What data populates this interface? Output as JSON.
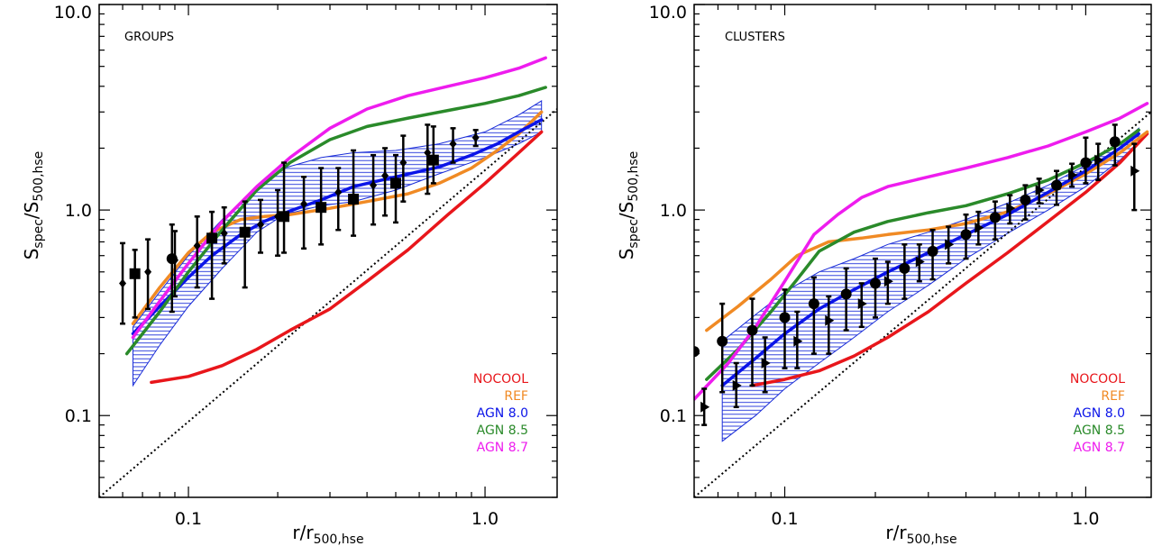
{
  "chart_data": [
    {
      "type": "line",
      "panel_label": "GROUPS",
      "xlabel_base": "r/r",
      "xlabel_sub": "500,hse",
      "ylabel_base": "S",
      "ylabel_sub1": "spec",
      "ylabel_mid": "/S",
      "ylabel_sub2": "500,hse",
      "xscale": "log",
      "yscale": "log",
      "xlim": [
        0.05,
        1.75
      ],
      "ylim": [
        0.04,
        10.0
      ],
      "xticks": [
        {
          "v": 0.1,
          "label": "0.1"
        },
        {
          "v": 1.0,
          "label": "1.0"
        }
      ],
      "yticks": [
        {
          "v": 0.1,
          "label": "0.1"
        },
        {
          "v": 1.0,
          "label": "1.0"
        },
        {
          "v": 10.0,
          "label": "10.0"
        }
      ],
      "legend": [
        {
          "label": "NOCOOL",
          "color": "#e8161b"
        },
        {
          "label": "REF",
          "color": "#f08a24"
        },
        {
          "label": "AGN 8.0",
          "color": "#0b14e8"
        },
        {
          "label": "AGN 8.5",
          "color": "#2a8a2a"
        },
        {
          "label": "AGN 8.7",
          "color": "#ee1cee"
        }
      ],
      "reference_line": {
        "x": [
          0.05,
          1.75
        ],
        "y": [
          0.04,
          3.1
        ]
      },
      "band": {
        "x": [
          0.065,
          0.08,
          0.1,
          0.13,
          0.17,
          0.21,
          0.28,
          0.36,
          0.5,
          0.7,
          1.0,
          1.3,
          1.55
        ],
        "upper": [
          0.27,
          0.4,
          0.6,
          0.9,
          1.3,
          1.6,
          1.8,
          1.9,
          1.95,
          2.1,
          2.4,
          2.9,
          3.4
        ],
        "lower": [
          0.14,
          0.22,
          0.34,
          0.52,
          0.78,
          0.95,
          1.05,
          1.1,
          1.25,
          1.5,
          1.8,
          2.1,
          2.4
        ]
      },
      "series": [
        {
          "name": "NOCOOL",
          "color": "#e8161b",
          "x": [
            0.075,
            0.1,
            0.13,
            0.17,
            0.22,
            0.3,
            0.4,
            0.55,
            0.75,
            1.0,
            1.3,
            1.55
          ],
          "y": [
            0.145,
            0.155,
            0.175,
            0.21,
            0.26,
            0.33,
            0.45,
            0.64,
            0.95,
            1.35,
            1.9,
            2.4
          ]
        },
        {
          "name": "REF",
          "color": "#f08a24",
          "x": [
            0.065,
            0.08,
            0.1,
            0.12,
            0.15,
            0.18,
            0.22,
            0.3,
            0.4,
            0.55,
            0.7,
            0.9,
            1.1,
            1.3,
            1.55
          ],
          "y": [
            0.28,
            0.42,
            0.62,
            0.78,
            0.9,
            0.93,
            0.95,
            1.02,
            1.1,
            1.2,
            1.35,
            1.6,
            1.95,
            2.35,
            3.0
          ]
        },
        {
          "name": "AGN 8.0",
          "color": "#0b14e8",
          "x": [
            0.065,
            0.08,
            0.1,
            0.12,
            0.15,
            0.18,
            0.22,
            0.28,
            0.36,
            0.5,
            0.7,
            0.9,
            1.1,
            1.3,
            1.55
          ],
          "y": [
            0.25,
            0.34,
            0.47,
            0.6,
            0.76,
            0.88,
            0.99,
            1.12,
            1.3,
            1.45,
            1.62,
            1.85,
            2.1,
            2.4,
            2.75
          ]
        },
        {
          "name": "AGN 8.5",
          "color": "#2a8a2a",
          "x": [
            0.062,
            0.08,
            0.1,
            0.13,
            0.17,
            0.22,
            0.3,
            0.4,
            0.55,
            0.75,
            1.0,
            1.3,
            1.6
          ],
          "y": [
            0.2,
            0.32,
            0.5,
            0.8,
            1.25,
            1.7,
            2.2,
            2.55,
            2.8,
            3.05,
            3.3,
            3.6,
            3.95
          ]
        },
        {
          "name": "AGN 8.7",
          "color": "#ee1cee",
          "x": [
            0.065,
            0.08,
            0.1,
            0.13,
            0.17,
            0.22,
            0.3,
            0.4,
            0.55,
            0.75,
            1.0,
            1.3,
            1.6
          ],
          "y": [
            0.24,
            0.36,
            0.55,
            0.88,
            1.3,
            1.8,
            2.5,
            3.1,
            3.6,
            4.0,
            4.4,
            4.9,
            5.5
          ]
        }
      ],
      "points": [
        {
          "x": 0.06,
          "y": 0.44,
          "lo": 0.28,
          "hi": 0.69,
          "marker": "diamond"
        },
        {
          "x": 0.066,
          "y": 0.49,
          "lo": 0.3,
          "hi": 0.64,
          "marker": "square"
        },
        {
          "x": 0.073,
          "y": 0.5,
          "lo": 0.33,
          "hi": 0.72,
          "marker": "diamond"
        },
        {
          "x": 0.088,
          "y": 0.58,
          "lo": 0.32,
          "hi": 0.85,
          "marker": "circle"
        },
        {
          "x": 0.09,
          "y": 0.57,
          "lo": 0.38,
          "hi": 0.79,
          "marker": "diamond"
        },
        {
          "x": 0.107,
          "y": 0.67,
          "lo": 0.42,
          "hi": 0.93,
          "marker": "diamond"
        },
        {
          "x": 0.12,
          "y": 0.73,
          "lo": 0.37,
          "hi": 0.98,
          "marker": "square"
        },
        {
          "x": 0.132,
          "y": 0.77,
          "lo": 0.55,
          "hi": 1.03,
          "marker": "diamond"
        },
        {
          "x": 0.155,
          "y": 0.78,
          "lo": 0.42,
          "hi": 1.1,
          "marker": "square"
        },
        {
          "x": 0.175,
          "y": 0.85,
          "lo": 0.62,
          "hi": 1.12,
          "marker": "diamond"
        },
        {
          "x": 0.2,
          "y": 0.93,
          "lo": 0.6,
          "hi": 1.25,
          "marker": "diamond"
        },
        {
          "x": 0.21,
          "y": 0.93,
          "lo": 0.62,
          "hi": 1.7,
          "marker": "square"
        },
        {
          "x": 0.245,
          "y": 1.07,
          "lo": 0.65,
          "hi": 1.45,
          "marker": "diamond"
        },
        {
          "x": 0.28,
          "y": 1.03,
          "lo": 0.68,
          "hi": 1.6,
          "marker": "square"
        },
        {
          "x": 0.32,
          "y": 1.22,
          "lo": 0.8,
          "hi": 1.6,
          "marker": "diamond"
        },
        {
          "x": 0.36,
          "y": 1.13,
          "lo": 0.75,
          "hi": 1.95,
          "marker": "square"
        },
        {
          "x": 0.42,
          "y": 1.32,
          "lo": 0.85,
          "hi": 1.85,
          "marker": "diamond"
        },
        {
          "x": 0.46,
          "y": 1.47,
          "lo": 0.94,
          "hi": 2.0,
          "marker": "diamond"
        },
        {
          "x": 0.5,
          "y": 1.35,
          "lo": 0.87,
          "hi": 1.85,
          "marker": "square"
        },
        {
          "x": 0.53,
          "y": 1.7,
          "lo": 1.1,
          "hi": 2.3,
          "marker": "diamond"
        },
        {
          "x": 0.64,
          "y": 1.9,
          "lo": 1.2,
          "hi": 2.6,
          "marker": "diamond"
        },
        {
          "x": 0.67,
          "y": 1.75,
          "lo": 1.35,
          "hi": 2.55,
          "marker": "square"
        },
        {
          "x": 0.78,
          "y": 2.1,
          "lo": 1.7,
          "hi": 2.5,
          "marker": "diamond"
        },
        {
          "x": 0.93,
          "y": 2.25,
          "lo": 2.05,
          "hi": 2.45,
          "marker": "diamond"
        }
      ]
    },
    {
      "type": "line",
      "panel_label": "CLUSTERS",
      "xlabel_base": "r/r",
      "xlabel_sub": "500,hse",
      "ylabel_base": "S",
      "ylabel_sub1": "spec",
      "ylabel_mid": "/S",
      "ylabel_sub2": "500,hse",
      "xscale": "log",
      "yscale": "log",
      "xlim": [
        0.05,
        1.65
      ],
      "ylim": [
        0.04,
        10.0
      ],
      "xticks": [
        {
          "v": 0.1,
          "label": "0.1"
        },
        {
          "v": 1.0,
          "label": "1.0"
        }
      ],
      "yticks": [
        {
          "v": 0.1,
          "label": "0.1"
        },
        {
          "v": 1.0,
          "label": "1.0"
        },
        {
          "v": 10.0,
          "label": "10.0"
        }
      ],
      "legend": [
        {
          "label": "NOCOOL",
          "color": "#e8161b"
        },
        {
          "label": "REF",
          "color": "#f08a24"
        },
        {
          "label": "AGN 8.0",
          "color": "#0b14e8"
        },
        {
          "label": "AGN 8.5",
          "color": "#2a8a2a"
        },
        {
          "label": "AGN 8.7",
          "color": "#ee1cee"
        }
      ],
      "reference_line": {
        "x": [
          0.05,
          1.65
        ],
        "y": [
          0.04,
          3.0
        ]
      },
      "band": {
        "x": [
          0.062,
          0.08,
          0.1,
          0.13,
          0.17,
          0.22,
          0.3,
          0.4,
          0.55,
          0.75,
          1.0,
          1.3,
          1.5
        ],
        "upper": [
          0.23,
          0.31,
          0.4,
          0.5,
          0.58,
          0.68,
          0.78,
          0.9,
          1.08,
          1.32,
          1.65,
          2.1,
          2.5
        ],
        "lower": [
          0.075,
          0.1,
          0.135,
          0.18,
          0.24,
          0.32,
          0.43,
          0.58,
          0.77,
          1.0,
          1.3,
          1.75,
          2.15
        ]
      },
      "series": [
        {
          "name": "NOCOOL",
          "color": "#e8161b",
          "x": [
            0.078,
            0.1,
            0.13,
            0.17,
            0.22,
            0.3,
            0.4,
            0.55,
            0.75,
            1.0,
            1.3,
            1.6
          ],
          "y": [
            0.14,
            0.15,
            0.165,
            0.195,
            0.24,
            0.32,
            0.44,
            0.62,
            0.88,
            1.22,
            1.7,
            2.35
          ]
        },
        {
          "name": "REF",
          "color": "#f08a24",
          "x": [
            0.055,
            0.07,
            0.09,
            0.11,
            0.14,
            0.18,
            0.22,
            0.3,
            0.4,
            0.55,
            0.75,
            1.0,
            1.3,
            1.6
          ],
          "y": [
            0.26,
            0.34,
            0.46,
            0.6,
            0.7,
            0.73,
            0.76,
            0.8,
            0.86,
            0.98,
            1.2,
            1.5,
            1.9,
            2.4
          ]
        },
        {
          "name": "AGN 8.0",
          "color": "#0b14e8",
          "x": [
            0.062,
            0.08,
            0.1,
            0.13,
            0.17,
            0.22,
            0.3,
            0.4,
            0.55,
            0.75,
            1.0,
            1.3,
            1.5
          ],
          "y": [
            0.14,
            0.19,
            0.25,
            0.33,
            0.41,
            0.5,
            0.62,
            0.76,
            0.95,
            1.22,
            1.55,
            2.0,
            2.35
          ]
        },
        {
          "name": "AGN 8.5",
          "color": "#2a8a2a",
          "x": [
            0.055,
            0.07,
            0.09,
            0.11,
            0.13,
            0.17,
            0.22,
            0.3,
            0.4,
            0.55,
            0.75,
            1.0,
            1.3,
            1.5
          ],
          "y": [
            0.15,
            0.21,
            0.32,
            0.46,
            0.63,
            0.78,
            0.88,
            0.97,
            1.05,
            1.2,
            1.4,
            1.7,
            2.1,
            2.45
          ]
        },
        {
          "name": "AGN 8.7",
          "color": "#ee1cee",
          "x": [
            0.05,
            0.065,
            0.08,
            0.1,
            0.125,
            0.15,
            0.18,
            0.22,
            0.3,
            0.4,
            0.55,
            0.75,
            1.0,
            1.3,
            1.6
          ],
          "y": [
            0.12,
            0.18,
            0.27,
            0.45,
            0.76,
            0.95,
            1.15,
            1.3,
            1.45,
            1.6,
            1.8,
            2.05,
            2.4,
            2.8,
            3.3
          ]
        }
      ],
      "points": [
        {
          "x": 0.05,
          "y": 0.205,
          "lo": 0.205,
          "hi": 0.205,
          "marker": "circle"
        },
        {
          "x": 0.054,
          "y": 0.11,
          "lo": 0.09,
          "hi": 0.135,
          "marker": "triangle"
        },
        {
          "x": 0.062,
          "y": 0.23,
          "lo": 0.13,
          "hi": 0.35,
          "marker": "circle"
        },
        {
          "x": 0.069,
          "y": 0.14,
          "lo": 0.11,
          "hi": 0.18,
          "marker": "triangle"
        },
        {
          "x": 0.078,
          "y": 0.26,
          "lo": 0.14,
          "hi": 0.37,
          "marker": "circle"
        },
        {
          "x": 0.086,
          "y": 0.18,
          "lo": 0.13,
          "hi": 0.24,
          "marker": "triangle"
        },
        {
          "x": 0.1,
          "y": 0.3,
          "lo": 0.17,
          "hi": 0.41,
          "marker": "circle"
        },
        {
          "x": 0.11,
          "y": 0.23,
          "lo": 0.17,
          "hi": 0.32,
          "marker": "triangle"
        },
        {
          "x": 0.125,
          "y": 0.35,
          "lo": 0.2,
          "hi": 0.47,
          "marker": "circle"
        },
        {
          "x": 0.14,
          "y": 0.29,
          "lo": 0.2,
          "hi": 0.38,
          "marker": "triangle"
        },
        {
          "x": 0.16,
          "y": 0.39,
          "lo": 0.26,
          "hi": 0.52,
          "marker": "circle"
        },
        {
          "x": 0.18,
          "y": 0.35,
          "lo": 0.27,
          "hi": 0.44,
          "marker": "triangle"
        },
        {
          "x": 0.2,
          "y": 0.44,
          "lo": 0.3,
          "hi": 0.58,
          "marker": "circle"
        },
        {
          "x": 0.22,
          "y": 0.45,
          "lo": 0.35,
          "hi": 0.56,
          "marker": "triangle"
        },
        {
          "x": 0.25,
          "y": 0.52,
          "lo": 0.37,
          "hi": 0.68,
          "marker": "circle"
        },
        {
          "x": 0.28,
          "y": 0.56,
          "lo": 0.45,
          "hi": 0.68,
          "marker": "triangle"
        },
        {
          "x": 0.31,
          "y": 0.63,
          "lo": 0.46,
          "hi": 0.8,
          "marker": "circle"
        },
        {
          "x": 0.35,
          "y": 0.68,
          "lo": 0.55,
          "hi": 0.83,
          "marker": "triangle"
        },
        {
          "x": 0.4,
          "y": 0.76,
          "lo": 0.58,
          "hi": 0.95,
          "marker": "circle"
        },
        {
          "x": 0.44,
          "y": 0.82,
          "lo": 0.68,
          "hi": 0.98,
          "marker": "triangle"
        },
        {
          "x": 0.5,
          "y": 0.92,
          "lo": 0.72,
          "hi": 1.1,
          "marker": "circle"
        },
        {
          "x": 0.56,
          "y": 1.02,
          "lo": 0.86,
          "hi": 1.18,
          "marker": "triangle"
        },
        {
          "x": 0.63,
          "y": 1.12,
          "lo": 0.9,
          "hi": 1.32,
          "marker": "circle"
        },
        {
          "x": 0.7,
          "y": 1.25,
          "lo": 1.08,
          "hi": 1.42,
          "marker": "triangle"
        },
        {
          "x": 0.8,
          "y": 1.32,
          "lo": 1.06,
          "hi": 1.55,
          "marker": "circle"
        },
        {
          "x": 0.9,
          "y": 1.48,
          "lo": 1.3,
          "hi": 1.68,
          "marker": "triangle"
        },
        {
          "x": 1.0,
          "y": 1.7,
          "lo": 1.35,
          "hi": 2.25,
          "marker": "circle"
        },
        {
          "x": 1.1,
          "y": 1.75,
          "lo": 1.4,
          "hi": 2.1,
          "marker": "triangle"
        },
        {
          "x": 1.25,
          "y": 2.15,
          "lo": 1.65,
          "hi": 2.6,
          "marker": "circle"
        },
        {
          "x": 1.45,
          "y": 1.55,
          "lo": 1.0,
          "hi": 2.1,
          "marker": "triangle"
        }
      ]
    }
  ]
}
